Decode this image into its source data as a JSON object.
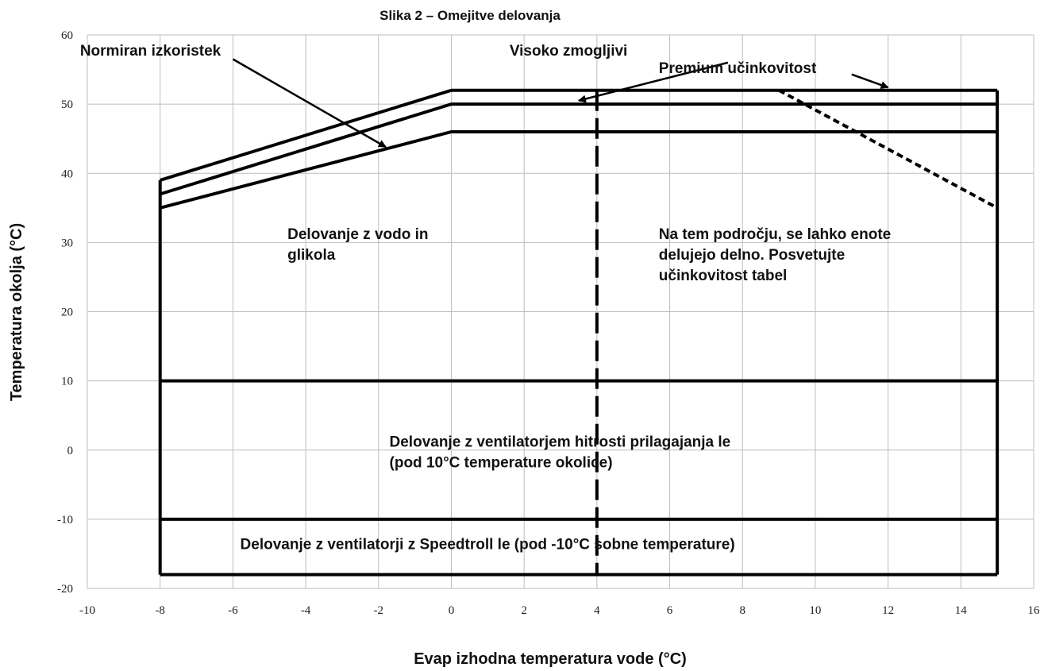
{
  "chart_data": {
    "type": "line",
    "title": "Slika 2 – Omejitve delovanja",
    "xlabel": "Evap izhodna temperatura vode (°C)",
    "ylabel": "Temperatura okolja (°C)",
    "xlim": [
      -10,
      16
    ],
    "ylim": [
      -20,
      60
    ],
    "x_ticks": [
      -10,
      -8,
      -6,
      -4,
      -2,
      0,
      2,
      4,
      6,
      8,
      10,
      12,
      14,
      16
    ],
    "y_ticks": [
      -20,
      -10,
      0,
      10,
      20,
      30,
      40,
      50,
      60
    ],
    "grid": true,
    "series": [
      {
        "name": "Premium učinkovitost",
        "style": "solid",
        "x": [
          -8,
          0,
          15
        ],
        "y": [
          39,
          52,
          52
        ]
      },
      {
        "name": "Visoko zmogljivi",
        "style": "solid",
        "x": [
          -8,
          0,
          15
        ],
        "y": [
          37,
          50,
          50
        ]
      },
      {
        "name": "Normiran izkoristek",
        "style": "solid",
        "x": [
          -8,
          0,
          15
        ],
        "y": [
          35,
          46,
          46
        ]
      }
    ],
    "boundaries": [
      {
        "style": "solid",
        "x": [
          -8,
          -8
        ],
        "y": [
          39,
          -18
        ]
      },
      {
        "style": "solid",
        "x": [
          15,
          15
        ],
        "y": [
          52,
          -18
        ]
      },
      {
        "style": "solid",
        "x": [
          -8,
          15
        ],
        "y": [
          10,
          10
        ]
      },
      {
        "style": "solid",
        "x": [
          -8,
          15
        ],
        "y": [
          -10,
          -10
        ]
      },
      {
        "style": "solid",
        "x": [
          -8,
          15
        ],
        "y": [
          -18,
          -18
        ]
      },
      {
        "style": "long-dash",
        "x": [
          4,
          4
        ],
        "y": [
          52,
          -18
        ]
      },
      {
        "style": "short-dash",
        "x": [
          9,
          15
        ],
        "y": [
          52,
          35
        ]
      }
    ],
    "callouts": [
      {
        "text": "Normiran izkoristek",
        "label_at": [
          -10.2,
          57
        ],
        "arrow_from": [
          -6,
          56.5
        ],
        "arrow_to": [
          -1.8,
          43.8
        ]
      },
      {
        "text": "Visoko zmogljivi",
        "label_at": [
          1.6,
          57
        ],
        "arrow_from": [
          7.6,
          56
        ],
        "arrow_to": [
          3.5,
          50.5
        ]
      },
      {
        "text": "Premium učinkovitost",
        "label_at": [
          5.7,
          54.5
        ],
        "arrow_from": [
          11.0,
          54.3
        ],
        "arrow_to": [
          12.0,
          52.4
        ]
      }
    ],
    "region_labels": [
      {
        "lines": [
          "Delovanje z vodo in",
          "glikola"
        ],
        "at": [
          -4.5,
          30.5
        ]
      },
      {
        "lines": [
          "Na tem področju, se lahko enote",
          "delujejo delno. Posvetujte",
          "učinkovitost tabel"
        ],
        "at": [
          5.7,
          30.5
        ]
      },
      {
        "lines": [
          "Delovanje z ventilatorjem hitrosti prilagajanja le",
          "(pod 10°C temperature okolice)"
        ],
        "at": [
          -1.7,
          0.5
        ]
      },
      {
        "lines": [
          "Delovanje z ventilatorji z Speedtroll le (pod -10°C sobne temperature)"
        ],
        "at": [
          -5.8,
          -14.3
        ]
      }
    ]
  }
}
